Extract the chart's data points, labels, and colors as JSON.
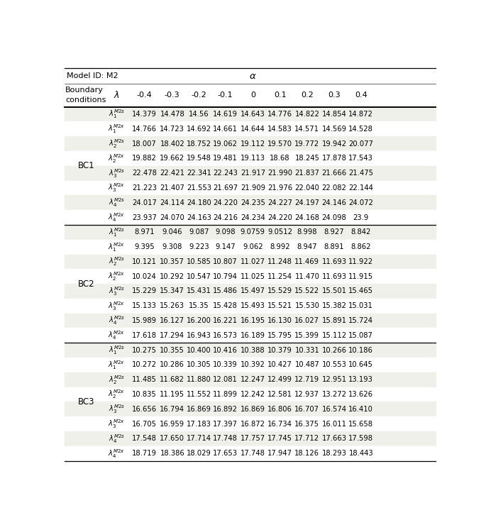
{
  "title_left": "Model ID: M2",
  "title_alpha": "α",
  "alpha_values": [
    "-0.4",
    "-0.3",
    "-0.2",
    "-0.1",
    "0",
    "0.1",
    "0.2",
    "0.3",
    "0.4"
  ],
  "rows": [
    {
      "bc": "BC1",
      "lambda_label": "\\lambda_1^{M2s}",
      "values": [
        "14.379",
        "14.478",
        "14.56",
        "14.619",
        "14.643",
        "14.776",
        "14.822",
        "14.854",
        "14.872"
      ]
    },
    {
      "bc": "",
      "lambda_label": "\\lambda_1^{M2x}",
      "values": [
        "14.766",
        "14.723",
        "14.692",
        "14.661",
        "14.644",
        "14.583",
        "14.571",
        "14.569",
        "14.528"
      ]
    },
    {
      "bc": "",
      "lambda_label": "\\lambda_2^{M2s}",
      "values": [
        "18.007",
        "18.402",
        "18.752",
        "19.062",
        "19.112",
        "19.570",
        "19.772",
        "19.942",
        "20.077"
      ]
    },
    {
      "bc": "",
      "lambda_label": "\\lambda_2^{M2x}",
      "values": [
        "19.882",
        "19.662",
        "19.548",
        "19.481",
        "19.113",
        "18.68",
        "18.245",
        "17.878",
        "17.543"
      ]
    },
    {
      "bc": "",
      "lambda_label": "\\lambda_3^{M2s}",
      "values": [
        "22.478",
        "22.421",
        "22.341",
        "22.243",
        "21.917",
        "21.990",
        "21.837",
        "21.666",
        "21.475"
      ]
    },
    {
      "bc": "",
      "lambda_label": "\\lambda_3^{M2x}",
      "values": [
        "21.223",
        "21.407",
        "21.553",
        "21.697",
        "21.909",
        "21.976",
        "22.040",
        "22.082",
        "22.144"
      ]
    },
    {
      "bc": "",
      "lambda_label": "\\lambda_4^{M2s}",
      "values": [
        "24.017",
        "24.114",
        "24.180",
        "24.220",
        "24.235",
        "24.227",
        "24.197",
        "24.146",
        "24.072"
      ]
    },
    {
      "bc": "",
      "lambda_label": "\\lambda_4^{M2x}",
      "values": [
        "23.937",
        "24.070",
        "24.163",
        "24.216",
        "24.234",
        "24.220",
        "24.168",
        "24.098",
        "23.9"
      ]
    },
    {
      "bc": "BC2",
      "lambda_label": "\\lambda_1^{M2s}",
      "values": [
        "8.971",
        "9.046",
        "9.087",
        "9.098",
        "9.0759",
        "9.0512",
        "8.998",
        "8.927",
        "8.842"
      ]
    },
    {
      "bc": "",
      "lambda_label": "\\lambda_1^{M2x}",
      "values": [
        "9.395",
        "9.308",
        "9.223",
        "9.147",
        "9.062",
        "8.992",
        "8.947",
        "8.891",
        "8.862"
      ]
    },
    {
      "bc": "",
      "lambda_label": "\\lambda_2^{M2s}",
      "values": [
        "10.121",
        "10.357",
        "10.585",
        "10.807",
        "11.027",
        "11.248",
        "11.469",
        "11.693",
        "11.922"
      ]
    },
    {
      "bc": "",
      "lambda_label": "\\lambda_2^{M2x}",
      "values": [
        "10.024",
        "10.292",
        "10.547",
        "10.794",
        "11.025",
        "11.254",
        "11.470",
        "11.693",
        "11.915"
      ]
    },
    {
      "bc": "",
      "lambda_label": "\\lambda_3^{M2s}",
      "values": [
        "15.229",
        "15.347",
        "15.431",
        "15.486",
        "15.497",
        "15.529",
        "15.522",
        "15.501",
        "15.465"
      ]
    },
    {
      "bc": "",
      "lambda_label": "\\lambda_3^{M2x}",
      "values": [
        "15.133",
        "15.263",
        "15.35",
        "15.428",
        "15.493",
        "15.521",
        "15.530",
        "15.382",
        "15.031"
      ]
    },
    {
      "bc": "",
      "lambda_label": "\\lambda_4^{M2s}",
      "values": [
        "15.989",
        "16.127",
        "16.200",
        "16.221",
        "16.195",
        "16.130",
        "16.027",
        "15.891",
        "15.724"
      ]
    },
    {
      "bc": "",
      "lambda_label": "\\lambda_4^{M2x}",
      "values": [
        "17.618",
        "17.294",
        "16.943",
        "16.573",
        "16.189",
        "15.795",
        "15.399",
        "15.112",
        "15.087"
      ]
    },
    {
      "bc": "BC3",
      "lambda_label": "\\lambda_1^{M2s}",
      "values": [
        "10.275",
        "10.355",
        "10.400",
        "10.416",
        "10.388",
        "10.379",
        "10.331",
        "10.266",
        "10.186"
      ]
    },
    {
      "bc": "",
      "lambda_label": "\\lambda_1^{M2x}",
      "values": [
        "10.272",
        "10.286",
        "10.305",
        "10.339",
        "10.392",
        "10.427",
        "10.487",
        "10.553",
        "10.645"
      ]
    },
    {
      "bc": "",
      "lambda_label": "\\lambda_2^{M2s}",
      "values": [
        "11.485",
        "11.682",
        "11.880",
        "12.081",
        "12.247",
        "12.499",
        "12.719",
        "12.951",
        "13.193"
      ]
    },
    {
      "bc": "",
      "lambda_label": "\\lambda_2^{M2x}",
      "values": [
        "10.835",
        "11.195",
        "11.552",
        "11.899",
        "12.242",
        "12.581",
        "12.937",
        "13.272",
        "13.626"
      ]
    },
    {
      "bc": "",
      "lambda_label": "\\lambda_3^{M2s}",
      "values": [
        "16.656",
        "16.794",
        "16.869",
        "16.892",
        "16.869",
        "16.806",
        "16.707",
        "16.574",
        "16.410"
      ]
    },
    {
      "bc": "",
      "lambda_label": "\\lambda_3^{M2x}",
      "values": [
        "16.705",
        "16.959",
        "17.183",
        "17.397",
        "16.872",
        "16.734",
        "16.375",
        "16.011",
        "15.658"
      ]
    },
    {
      "bc": "",
      "lambda_label": "\\lambda_4^{M2s}",
      "values": [
        "17.548",
        "17.650",
        "17.714",
        "17.748",
        "17.757",
        "17.745",
        "17.712",
        "17.663",
        "17.598"
      ]
    },
    {
      "bc": "",
      "lambda_label": "\\lambda_4^{M2x}",
      "values": [
        "18.719",
        "18.386",
        "18.029",
        "17.653",
        "17.748",
        "17.947",
        "18.126",
        "18.293",
        "18.443"
      ]
    }
  ],
  "bc_groups": [
    {
      "label": "BC1",
      "start": 0,
      "end": 7
    },
    {
      "label": "BC2",
      "start": 8,
      "end": 15
    },
    {
      "label": "BC3",
      "start": 16,
      "end": 23
    }
  ],
  "bg_color_even": "#f0f0eb",
  "bg_color_odd": "#ffffff",
  "text_color": "#000000",
  "line_color": "#000000"
}
